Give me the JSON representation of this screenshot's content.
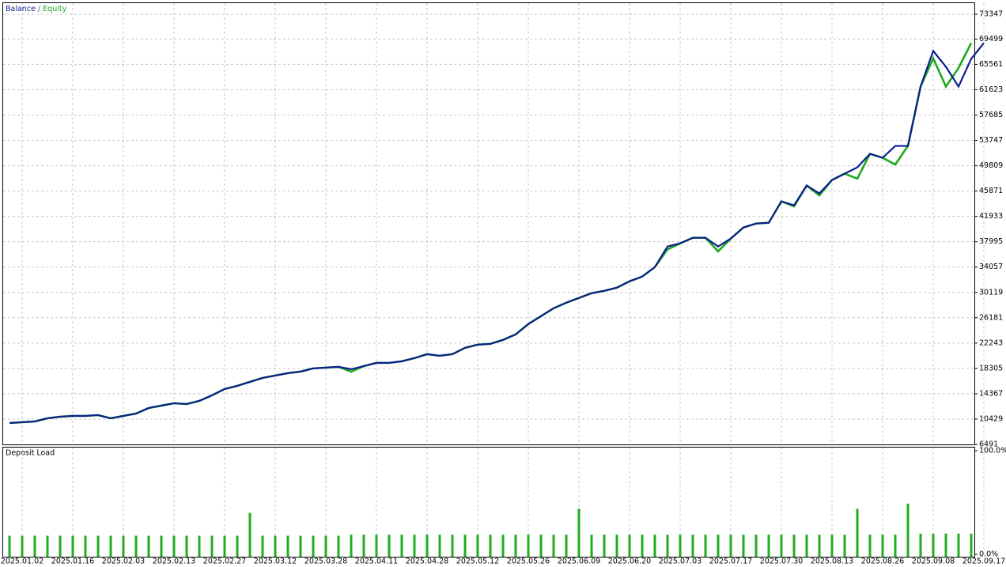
{
  "chart_data": [
    {
      "type": "line",
      "legend_separator": "/",
      "series": [
        {
          "name": "Equity",
          "color": "#1fa81f",
          "values": [
            9814,
            9937,
            10060,
            10552,
            10798,
            10921,
            10921,
            11044,
            10552,
            10921,
            11290,
            12152,
            12521,
            12890,
            12767,
            13259,
            14121,
            15105,
            15597,
            16213,
            16828,
            17197,
            17566,
            17813,
            18305,
            18428,
            18551,
            17800,
            18674,
            19166,
            19166,
            19412,
            19905,
            20520,
            20274,
            20520,
            21504,
            21997,
            22120,
            22735,
            23596,
            25196,
            26427,
            27657,
            28519,
            29257,
            29995,
            30365,
            30857,
            31841,
            32580,
            34056,
            36800,
            37748,
            38610,
            38610,
            36500,
            38487,
            40209,
            40825,
            40948,
            44270,
            43500,
            46732,
            45200,
            47593,
            48578,
            47800,
            51654,
            51039,
            50000,
            52885,
            62114,
            66500,
            62114,
            65000,
            68882,
            null
          ]
        },
        {
          "name": "Balance",
          "color": "#0c1f8c",
          "values": [
            9814,
            9937,
            10060,
            10552,
            10798,
            10921,
            10921,
            11044,
            10552,
            10921,
            11290,
            12152,
            12521,
            12890,
            12767,
            13259,
            14121,
            15105,
            15597,
            16213,
            16828,
            17197,
            17566,
            17813,
            18305,
            18428,
            18551,
            18182,
            18674,
            19166,
            19166,
            19412,
            19905,
            20520,
            20274,
            20520,
            21504,
            21997,
            22120,
            22735,
            23596,
            25196,
            26427,
            27657,
            28519,
            29257,
            29995,
            30365,
            30857,
            31841,
            32580,
            34056,
            37256,
            37748,
            38610,
            38610,
            37256,
            38487,
            40209,
            40825,
            40948,
            44270,
            43655,
            46732,
            45501,
            47593,
            48578,
            49562,
            51654,
            51039,
            52885,
            52885,
            62114,
            67652,
            65191,
            62114,
            66421,
            68882,
            null
          ]
        }
      ],
      "ylim": [
        6491,
        75199
      ],
      "yticks": [
        6491,
        10429,
        14367,
        18305,
        22243,
        26181,
        30119,
        34057,
        37995,
        41933,
        45871,
        49809,
        53747,
        57685,
        61623,
        65561,
        69499,
        73347
      ],
      "grid": true
    },
    {
      "type": "bar",
      "title": "Deposit Load",
      "color": "#1fae1f",
      "categories": [
        null,
        "2025.01.02",
        null,
        null,
        null,
        "2025.01.16",
        null,
        null,
        null,
        "2025.02.03",
        null,
        null,
        null,
        "2025.02.13",
        null,
        null,
        null,
        "2025.02.27",
        null,
        null,
        null,
        "2025.03.12",
        null,
        null,
        null,
        "2025.03.28",
        null,
        null,
        null,
        "2025.04.11",
        null,
        null,
        null,
        "2025.04.28",
        null,
        null,
        null,
        "2025.05.12",
        null,
        null,
        null,
        "2025.05.26",
        null,
        null,
        null,
        "2025.06.09",
        null,
        null,
        null,
        "2025.06.20",
        null,
        null,
        null,
        "2025.07.03",
        null,
        null,
        null,
        "2025.07.17",
        null,
        null,
        null,
        "2025.07.30",
        null,
        null,
        null,
        "2025.08.13",
        null,
        null,
        null,
        "2025.08.26",
        null,
        null,
        null,
        "2025.09.08",
        null,
        null,
        null,
        "2025.09.17"
      ],
      "values": [
        18,
        18,
        18,
        18,
        18,
        18,
        18,
        18,
        18,
        18,
        18,
        18,
        18,
        18,
        18,
        18,
        18,
        18,
        18,
        40,
        18,
        18,
        18,
        18,
        18,
        18,
        18,
        19,
        19,
        19,
        19,
        19,
        19,
        19,
        19,
        19,
        19,
        19,
        19,
        19,
        19,
        19,
        19,
        19,
        19,
        44,
        19,
        19,
        19,
        19,
        19,
        19,
        19,
        19,
        19,
        19,
        19,
        19,
        19,
        19,
        19,
        19,
        19,
        19,
        19,
        19,
        19,
        44,
        19,
        19,
        19,
        49,
        20,
        20,
        20,
        20,
        20,
        null
      ],
      "ylim": [
        0,
        100
      ],
      "yticks": [
        {
          "value": 100,
          "label": "100.0%"
        },
        {
          "value": 0,
          "label": "0.0%"
        }
      ]
    }
  ]
}
